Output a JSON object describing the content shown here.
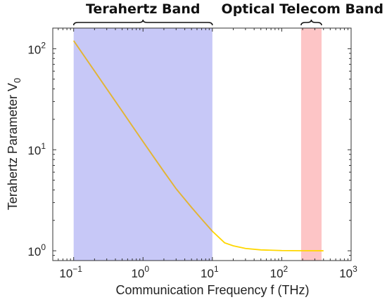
{
  "chart_data": {
    "type": "line",
    "xlabel": "Communication Frequency f (THz)",
    "ylabel": "Terahertz Parameter V",
    "ylabel_subscript": "0",
    "xscale": "log",
    "yscale": "log",
    "xlim": [
      0.05,
      1000
    ],
    "ylim": [
      0.8,
      160
    ],
    "x_ticks": [
      {
        "value": 0.1,
        "base": "10",
        "exp": "−1"
      },
      {
        "value": 1,
        "base": "10",
        "exp": "0"
      },
      {
        "value": 10,
        "base": "10",
        "exp": "1"
      },
      {
        "value": 100,
        "base": "10",
        "exp": "2"
      },
      {
        "value": 1000,
        "base": "10",
        "exp": "3"
      }
    ],
    "y_ticks": [
      {
        "value": 1,
        "base": "10",
        "exp": "0"
      },
      {
        "value": 10,
        "base": "10",
        "exp": "1"
      },
      {
        "value": 100,
        "base": "10",
        "exp": "2"
      }
    ],
    "grid": false,
    "bands": [
      {
        "label": "Terahertz Band",
        "x_range": [
          0.1,
          10
        ],
        "color": "#c7c8f7"
      },
      {
        "label": "Optical Telecom Band",
        "x_range": [
          190,
          375
        ],
        "color": "#fdc5c6"
      }
    ],
    "series": [
      {
        "color": "#ffd700",
        "overlap_color": "#e0b23a",
        "x": [
          0.1,
          0.15,
          0.2,
          0.3,
          0.5,
          0.7,
          1,
          1.5,
          2,
          3,
          5,
          7,
          10,
          15,
          20,
          30,
          50,
          100,
          200,
          400
        ],
        "y": [
          120,
          80,
          60.1,
          40.1,
          24.1,
          17.2,
          12.04,
          8.06,
          6.08,
          4.11,
          2.69,
          2.06,
          1.56,
          1.2,
          1.12,
          1.055,
          1.02,
          1.005,
          1.001,
          1.0
        ]
      }
    ]
  }
}
